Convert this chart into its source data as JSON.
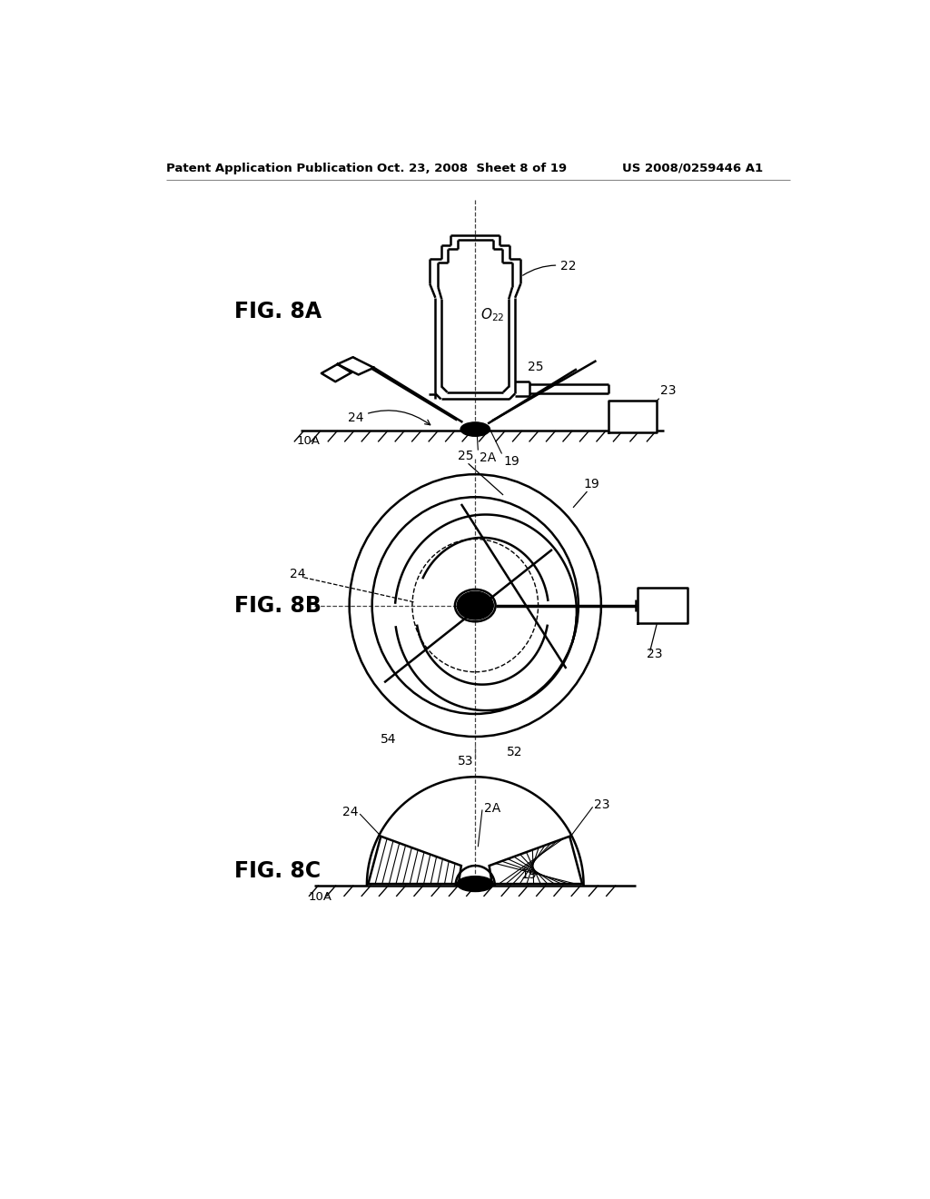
{
  "bg_color": "#ffffff",
  "line_color": "#000000",
  "header_left": "Patent Application Publication",
  "header_center": "Oct. 23, 2008  Sheet 8 of 19",
  "header_right": "US 2008/0259446 A1",
  "fig8a_label": "FIG. 8A",
  "fig8b_label": "FIG. 8B",
  "fig8c_label": "FIG. 8C"
}
